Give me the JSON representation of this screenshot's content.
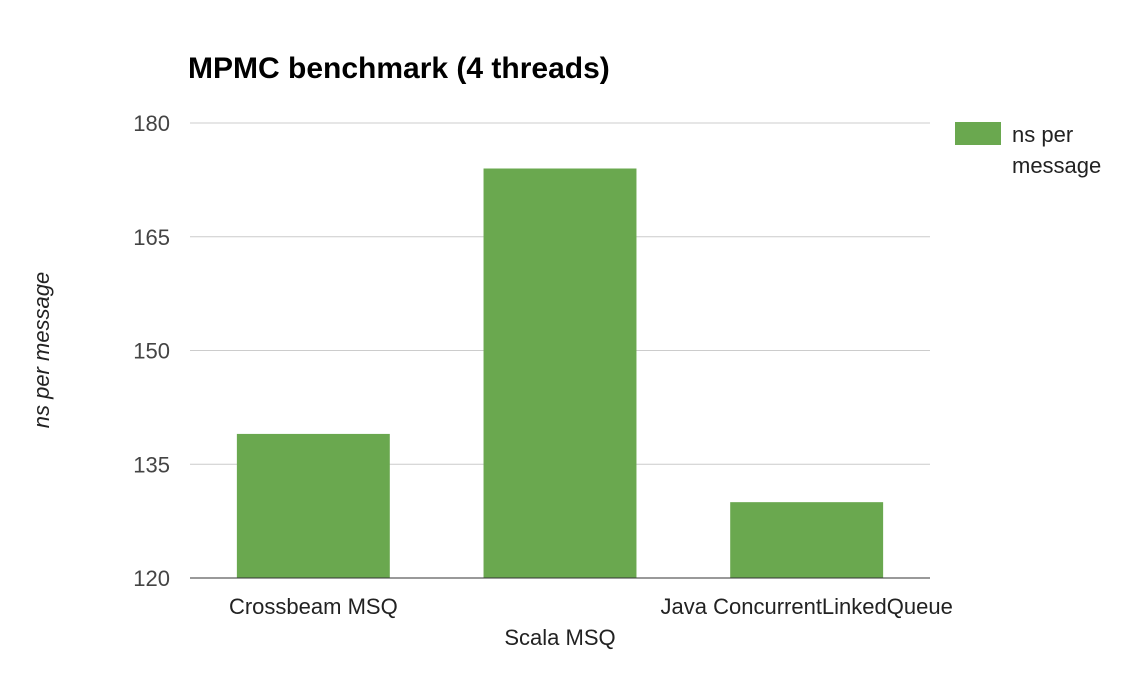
{
  "chart_data": {
    "type": "bar",
    "title": "MPMC benchmark (4 threads)",
    "xlabel": "",
    "ylabel": "ns per message",
    "categories": [
      "Crossbeam MSQ",
      "Scala MSQ",
      "Java ConcurrentLinkedQueue"
    ],
    "series": [
      {
        "name": "ns per message",
        "values": [
          139,
          174,
          130
        ]
      }
    ],
    "ylim": [
      120,
      180
    ],
    "yticks": [
      120,
      135,
      150,
      165,
      180
    ],
    "grid": true,
    "legend": {
      "placement": "right",
      "lines": [
        "ns per",
        "message"
      ]
    },
    "colors": {
      "bar": "#6aa84f"
    }
  }
}
